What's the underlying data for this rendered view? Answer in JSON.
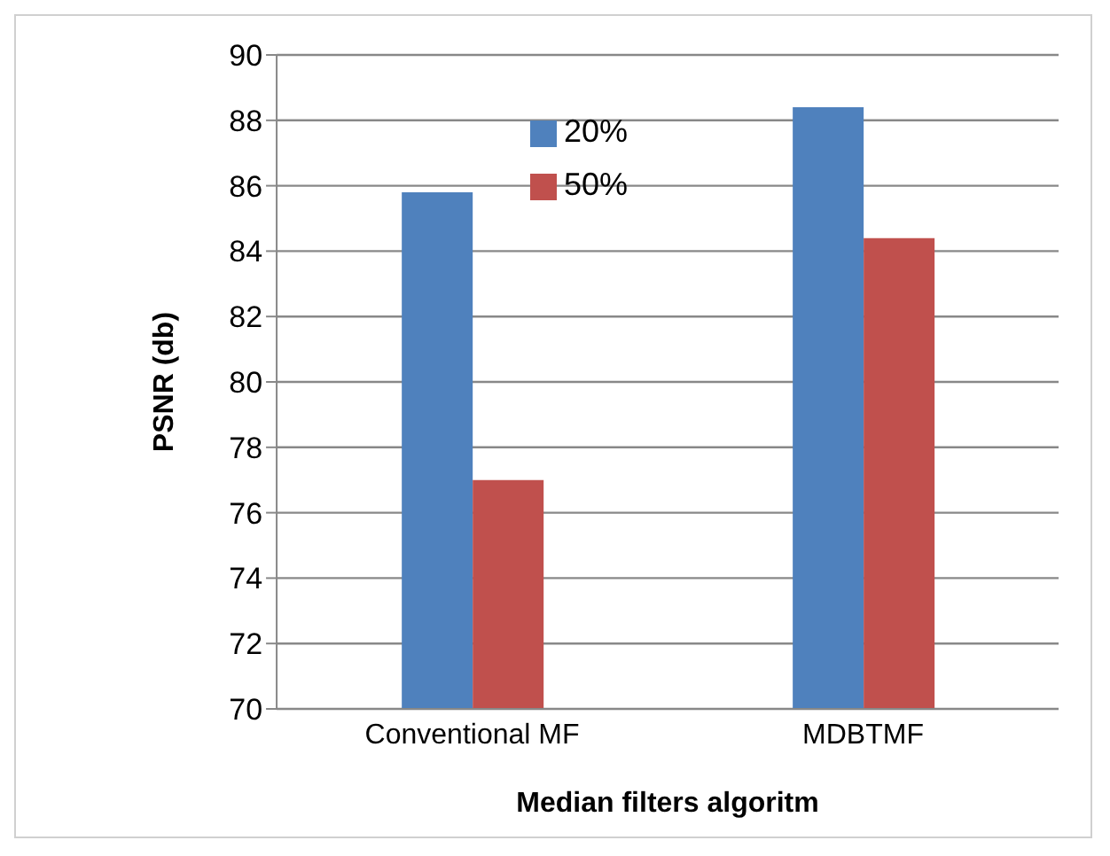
{
  "chart_data": {
    "type": "bar",
    "xlabel": "Median  filters algoritm",
    "ylabel": "PSNR (db)",
    "categories": [
      "Conventional MF",
      "MDBTMF"
    ],
    "series": [
      {
        "name": "20%",
        "color": "#4f81bd",
        "values": [
          85.8,
          88.4
        ]
      },
      {
        "name": "50%",
        "color": "#c0504d",
        "values": [
          77.0,
          84.4
        ]
      }
    ],
    "ylim": [
      70,
      90
    ],
    "yticks": [
      70,
      72,
      74,
      76,
      78,
      80,
      82,
      84,
      86,
      88,
      90
    ],
    "grid": "y",
    "legend": "top"
  }
}
